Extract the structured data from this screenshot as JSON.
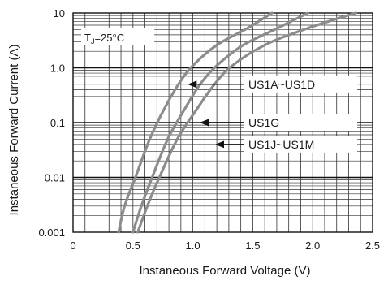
{
  "chart_data": {
    "type": "line",
    "xlabel": "Instaneous Forward Voltage (V)",
    "ylabel": "Instaneous Forward Current (A)",
    "xlim": [
      0,
      2.5
    ],
    "ylim": [
      0.001,
      10
    ],
    "yscale": "log",
    "x_ticks": [
      "0",
      "0.5",
      "1.0",
      "1.5",
      "2.0",
      "2.5"
    ],
    "y_ticks": [
      "0.001",
      "0.01",
      "0.1",
      "1.0",
      "10"
    ],
    "grid": true,
    "annotation": {
      "prefix": "T",
      "sub": "J",
      "suffix": "=25°C"
    },
    "series": [
      {
        "name": "US1A~US1D",
        "label_target": [
          0.95,
          0.5
        ],
        "points": [
          [
            0.38,
            0.001
          ],
          [
            0.43,
            0.003
          ],
          [
            0.52,
            0.01
          ],
          [
            0.64,
            0.05
          ],
          [
            0.75,
            0.16
          ],
          [
            0.88,
            0.5
          ],
          [
            1.0,
            1.1
          ],
          [
            1.2,
            2.6
          ],
          [
            1.45,
            5.2
          ],
          [
            1.66,
            10
          ]
        ]
      },
      {
        "name": "US1G",
        "label_target": [
          1.05,
          0.1
        ],
        "points": [
          [
            0.5,
            0.001
          ],
          [
            0.57,
            0.003
          ],
          [
            0.66,
            0.01
          ],
          [
            0.79,
            0.05
          ],
          [
            0.92,
            0.16
          ],
          [
            1.06,
            0.5
          ],
          [
            1.2,
            1.1
          ],
          [
            1.42,
            2.6
          ],
          [
            1.7,
            5.2
          ],
          [
            1.96,
            10
          ]
        ]
      },
      {
        "name": "US1J~US1M",
        "label_target": [
          1.18,
          0.04
        ],
        "points": [
          [
            0.54,
            0.001
          ],
          [
            0.62,
            0.003
          ],
          [
            0.72,
            0.01
          ],
          [
            0.87,
            0.05
          ],
          [
            1.02,
            0.16
          ],
          [
            1.18,
            0.5
          ],
          [
            1.33,
            1.1
          ],
          [
            1.6,
            2.6
          ],
          [
            1.95,
            5.2
          ],
          [
            2.36,
            10
          ]
        ]
      }
    ]
  }
}
